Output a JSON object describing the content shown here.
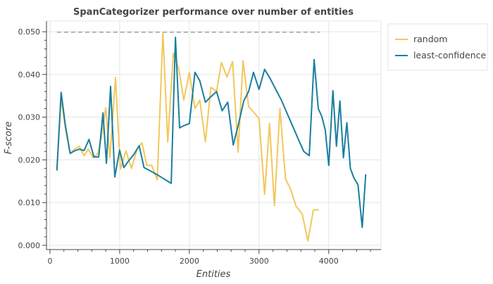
{
  "chart_data": {
    "type": "line",
    "title": "SpanCategorizer performance over number of entities",
    "xlabel": "Entities",
    "ylabel": "F-score",
    "xlim": [
      -50,
      4750
    ],
    "ylim": [
      -0.001,
      0.0525
    ],
    "xticks": [
      "0",
      "1000",
      "2000",
      "3000",
      "4000"
    ],
    "yticks": [
      "0.000",
      "0.010",
      "0.020",
      "0.030",
      "0.040",
      "0.050"
    ],
    "grid": true,
    "legend_position": "top-right",
    "reference_line": {
      "y": 0.0499,
      "x_start": 100,
      "x_end": 3870,
      "style": "dashed",
      "color": "#999999"
    },
    "series": [
      {
        "name": "random",
        "color": "#f2c75c",
        "x": [
          100,
          160,
          220,
          290,
          350,
          420,
          490,
          550,
          620,
          690,
          750,
          800,
          860,
          940,
          1010,
          1090,
          1170,
          1250,
          1320,
          1390,
          1460,
          1540,
          1620,
          1690,
          1770,
          1850,
          1920,
          2000,
          2080,
          2150,
          2230,
          2310,
          2390,
          2460,
          2540,
          2620,
          2700,
          2770,
          2850,
          2920,
          3000,
          3080,
          3150,
          3220,
          3300,
          3380,
          3450,
          3530,
          3620,
          3700,
          3780,
          3850
        ],
        "y": [
          0.0175,
          0.0345,
          0.0275,
          0.0215,
          0.0225,
          0.0232,
          0.021,
          0.0225,
          0.0205,
          0.0215,
          0.0265,
          0.0322,
          0.0205,
          0.0393,
          0.0178,
          0.0221,
          0.018,
          0.0225,
          0.024,
          0.0187,
          0.0187,
          0.0153,
          0.0498,
          0.0242,
          0.045,
          0.0412,
          0.034,
          0.0405,
          0.032,
          0.034,
          0.0242,
          0.037,
          0.036,
          0.0428,
          0.0394,
          0.043,
          0.0218,
          0.0432,
          0.0325,
          0.0312,
          0.0297,
          0.0119,
          0.0285,
          0.0093,
          0.032,
          0.0155,
          0.0132,
          0.0092,
          0.0073,
          0.001,
          0.0083,
          0.0083
        ]
      },
      {
        "name": "least-confidence",
        "color": "#1a7ea0",
        "x": [
          100,
          160,
          220,
          290,
          350,
          420,
          490,
          560,
          630,
          700,
          760,
          810,
          870,
          930,
          1000,
          1060,
          1130,
          1200,
          1280,
          1350,
          1430,
          1510,
          1590,
          1660,
          1740,
          1800,
          1860,
          1920,
          2000,
          2080,
          2150,
          2230,
          2310,
          2390,
          2470,
          2550,
          2630,
          2700,
          2780,
          2850,
          2920,
          3000,
          3080,
          3160,
          3240,
          3320,
          3400,
          3480,
          3560,
          3640,
          3720,
          3790,
          3850,
          3900,
          3950,
          4000,
          4060,
          4110,
          4160,
          4210,
          4260,
          4310,
          4360,
          4420,
          4480,
          4530
        ],
        "y": [
          0.0177,
          0.0358,
          0.0282,
          0.0215,
          0.0221,
          0.0225,
          0.0222,
          0.0248,
          0.0207,
          0.0207,
          0.031,
          0.0192,
          0.0372,
          0.016,
          0.0223,
          0.0182,
          0.0198,
          0.0212,
          0.0233,
          0.0182,
          0.0175,
          0.0168,
          0.016,
          0.0153,
          0.0145,
          0.0487,
          0.0275,
          0.028,
          0.0285,
          0.0405,
          0.0385,
          0.0335,
          0.0348,
          0.036,
          0.0315,
          0.0335,
          0.0235,
          0.028,
          0.0338,
          0.036,
          0.0405,
          0.0365,
          0.0412,
          0.039,
          0.0365,
          0.034,
          0.031,
          0.028,
          0.025,
          0.022,
          0.021,
          0.0435,
          0.032,
          0.0302,
          0.027,
          0.0187,
          0.0362,
          0.0232,
          0.0338,
          0.0205,
          0.0287,
          0.018,
          0.0158,
          0.0142,
          0.0042,
          0.0165
        ]
      }
    ]
  }
}
